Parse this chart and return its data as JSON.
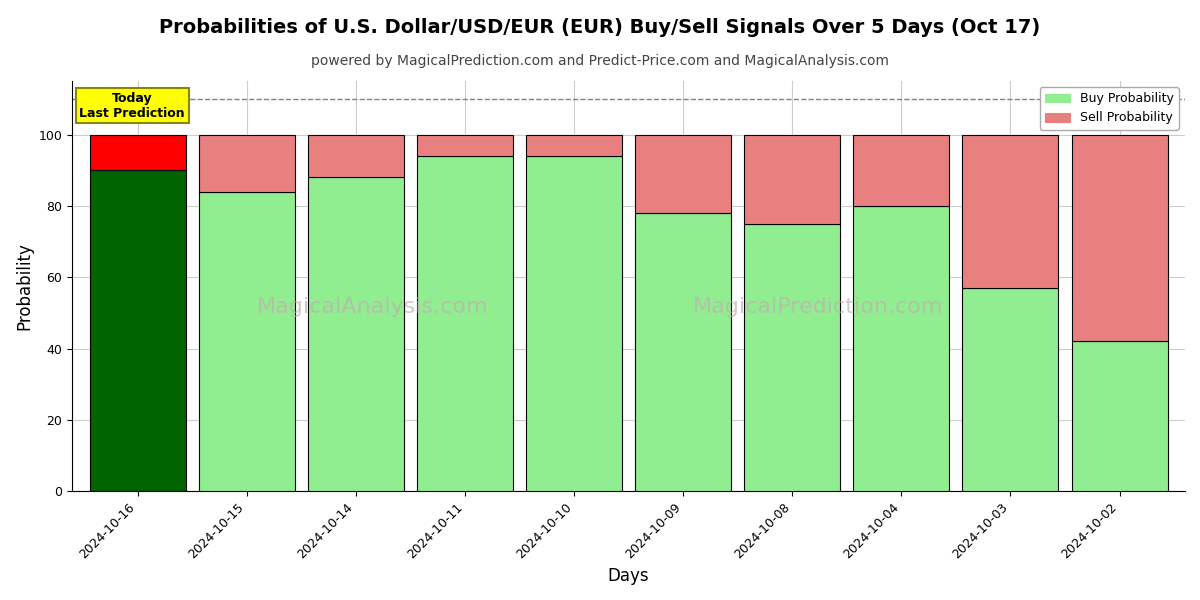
{
  "title": "Probabilities of U.S. Dollar/USD/EUR (EUR) Buy/Sell Signals Over 5 Days (Oct 17)",
  "subtitle": "powered by MagicalPrediction.com and Predict-Price.com and MagicalAnalysis.com",
  "xlabel": "Days",
  "ylabel": "Probability",
  "dates": [
    "2024-10-16",
    "2024-10-15",
    "2024-10-14",
    "2024-10-11",
    "2024-10-10",
    "2024-10-09",
    "2024-10-08",
    "2024-10-04",
    "2024-10-03",
    "2024-10-02"
  ],
  "buy_values": [
    90,
    84,
    88,
    94,
    94,
    78,
    75,
    80,
    57,
    42
  ],
  "sell_values": [
    10,
    16,
    12,
    6,
    6,
    22,
    25,
    20,
    43,
    58
  ],
  "buy_colors": [
    "#006400",
    "#90EE90",
    "#90EE90",
    "#90EE90",
    "#90EE90",
    "#90EE90",
    "#90EE90",
    "#90EE90",
    "#90EE90",
    "#90EE90"
  ],
  "sell_colors": [
    "#FF0000",
    "#E88080",
    "#E88080",
    "#E88080",
    "#E88080",
    "#E88080",
    "#E88080",
    "#E88080",
    "#E88080",
    "#E88080"
  ],
  "legend_buy_color": "#90EE90",
  "legend_sell_color": "#E88080",
  "today_box_color": "#FFFF00",
  "today_text": "Today\nLast Prediction",
  "dashed_line_y": 110,
  "ylim": [
    0,
    115
  ],
  "yticks": [
    0,
    20,
    40,
    60,
    80,
    100
  ],
  "bar_edge_color": "#000000",
  "bar_edge_width": 0.8,
  "watermark1_text": "MagicalAnalysis.com",
  "watermark2_text": "MagicalPrediction.com",
  "background_color": "#ffffff",
  "plot_bg_color": "#ffffff",
  "grid_color": "#cccccc",
  "title_fontsize": 14,
  "subtitle_fontsize": 10,
  "axis_label_fontsize": 12,
  "tick_fontsize": 9,
  "bar_width": 0.88
}
